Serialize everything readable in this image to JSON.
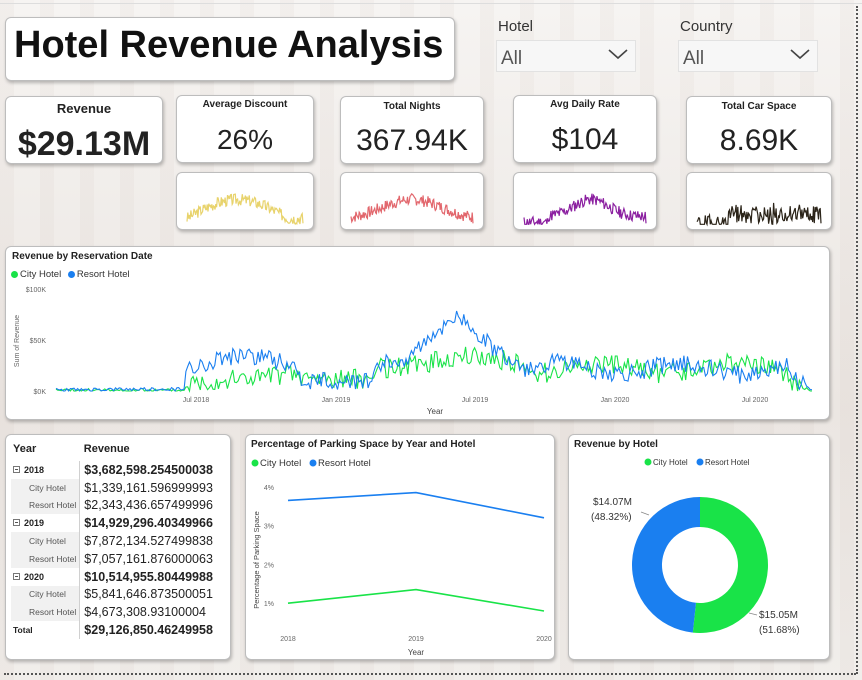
{
  "title": "Hotel Revenue Analysis",
  "filters": {
    "hotel": {
      "label": "Hotel",
      "value": "All"
    },
    "country": {
      "label": "Country",
      "value": "All"
    }
  },
  "kpis": {
    "revenue": {
      "label": "Revenue",
      "value": "$29.13M"
    },
    "avg_discount": {
      "label": "Average Discount",
      "value": "26%",
      "color": "#e8d36c"
    },
    "total_nights": {
      "label": "Total Nights",
      "value": "367.94K",
      "color": "#e2676d"
    },
    "avg_daily_rate": {
      "label": "Avg Daily Rate",
      "value": "$104",
      "color": "#8b1fa0"
    },
    "total_car_space": {
      "label": "Total Car Space",
      "value": "8.69K",
      "color": "#2b2419"
    }
  },
  "colors": {
    "city": "#19e348",
    "resort": "#1a7ff0"
  },
  "revenue_chart": {
    "title": "Revenue by Reservation Date",
    "legend": [
      "City Hotel",
      "Resort Hotel"
    ],
    "ylabel": "Sum of Revenue",
    "xlabel": "Year",
    "yticks": [
      "$100K",
      "$50K",
      "$0K"
    ],
    "xticks": [
      "Jul 2018",
      "Jan 2019",
      "Jul 2019",
      "Jan 2020",
      "Jul 2020"
    ]
  },
  "table": {
    "headers": [
      "Year",
      "Revenue"
    ],
    "rows": [
      {
        "type": "grp",
        "key": "2018",
        "value": "$3,682,598.254500038"
      },
      {
        "type": "sub",
        "key": "City Hotel",
        "value": "$1,339,161.596999993"
      },
      {
        "type": "sub",
        "key": "Resort Hotel",
        "value": "$2,343,436.657499996"
      },
      {
        "type": "grp",
        "key": "2019",
        "value": "$14,929,296.40349966"
      },
      {
        "type": "sub",
        "key": "City Hotel",
        "value": "$7,872,134.527499838"
      },
      {
        "type": "sub",
        "key": "Resort Hotel",
        "value": "$7,057,161.876000063"
      },
      {
        "type": "grp",
        "key": "2020",
        "value": "$10,514,955.80449988"
      },
      {
        "type": "sub",
        "key": "City Hotel",
        "value": "$5,841,646.873500051"
      },
      {
        "type": "sub",
        "key": "Resort Hotel",
        "value": "$4,673,308.93100004"
      },
      {
        "type": "tot",
        "key": "Total",
        "value": "$29,126,850.46249958"
      }
    ]
  },
  "chart_data": [
    {
      "type": "line",
      "title": "Percentage of Parking Space by Year and Hotel",
      "xlabel": "Year",
      "ylabel": "Percentage of Parking Space",
      "x": [
        "2018",
        "2019",
        "2020"
      ],
      "yticks": [
        "4%",
        "3%",
        "2%",
        "1%"
      ],
      "ylim": [
        0.8,
        4.2
      ],
      "series": [
        {
          "name": "City Hotel",
          "values": [
            1.0,
            1.35,
            0.8
          ]
        },
        {
          "name": "Resort Hotel",
          "values": [
            3.65,
            3.85,
            3.2
          ]
        }
      ]
    },
    {
      "type": "pie",
      "title": "Revenue by Hotel",
      "donut": true,
      "categories": [
        "City Hotel",
        "Resort Hotel"
      ],
      "values": [
        15.05,
        14.07
      ],
      "labels": [
        {
          "value": "$15.05M",
          "pct": "(51.68%)"
        },
        {
          "value": "$14.07M",
          "pct": "(48.32%)"
        }
      ]
    }
  ]
}
